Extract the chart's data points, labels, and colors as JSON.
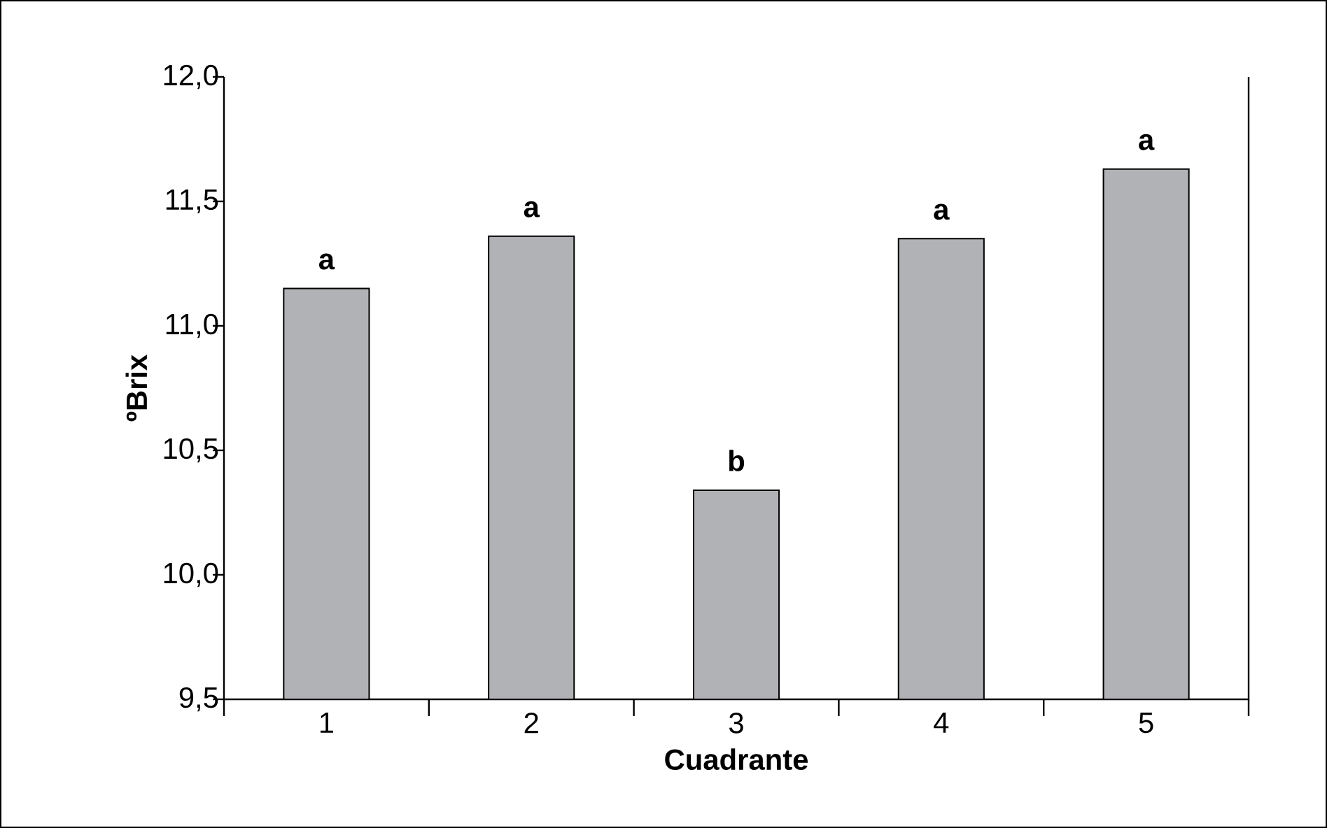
{
  "chart_data": {
    "type": "bar",
    "categories": [
      "1",
      "2",
      "3",
      "4",
      "5"
    ],
    "values": [
      11.15,
      11.36,
      10.34,
      11.35,
      11.63
    ],
    "color": "#b1b2b5",
    "xlabel": "Cuadrante",
    "ylabel": "ºBrix",
    "ylim": [
      9.5,
      12.0
    ],
    "yticks": [
      {
        "value": 9.5,
        "label": "9,5"
      },
      {
        "value": 10.0,
        "label": "10,0"
      },
      {
        "value": 10.5,
        "label": "10,5"
      },
      {
        "value": 11.0,
        "label": "11,0"
      },
      {
        "value": 11.5,
        "label": "11,5"
      },
      {
        "value": 12.0,
        "label": "12,0"
      }
    ],
    "annotations": [
      {
        "text": "a",
        "x": "1",
        "y": 11.15
      },
      {
        "text": "a",
        "x": "2",
        "y": 11.36
      },
      {
        "text": "b",
        "x": "3",
        "y": 10.34
      },
      {
        "text": "a",
        "x": "4",
        "y": 11.35
      },
      {
        "text": "a",
        "x": "5",
        "y": 11.63
      }
    ]
  }
}
